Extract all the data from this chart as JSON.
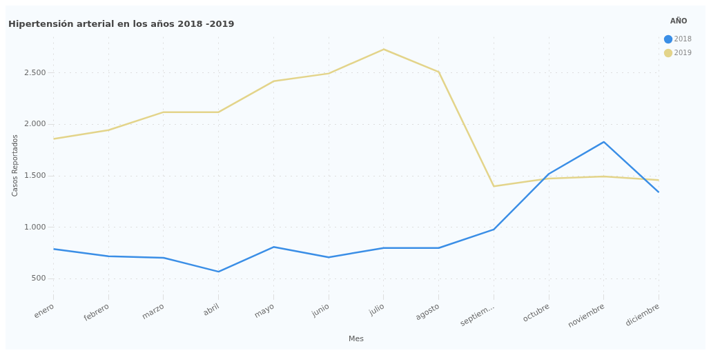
{
  "chart_data": {
    "type": "line",
    "title": "Hipertensión arterial en los años 2018 -2019",
    "xlabel": "Mes",
    "ylabel": "Casos Reportados",
    "legend_title": "AÑO",
    "categories": [
      "enero",
      "febrero",
      "marzo",
      "abril",
      "mayo",
      "junio",
      "julio",
      "agosto",
      "septiem...",
      "octubre",
      "noviembre",
      "diciembre"
    ],
    "series": [
      {
        "name": "2018",
        "color": "#3a8ee6",
        "values": [
          790,
          720,
          705,
          570,
          810,
          710,
          800,
          800,
          980,
          1520,
          1830,
          1340
        ]
      },
      {
        "name": "2019",
        "color": "#e3d48a",
        "values": [
          1860,
          1945,
          2120,
          2120,
          2420,
          2495,
          2730,
          2510,
          1400,
          1475,
          1495,
          1460
        ]
      }
    ],
    "ylim": [
      350,
      2850
    ],
    "yticks": [
      {
        "value": 500,
        "label": "500"
      },
      {
        "value": 1000,
        "label": "1.000"
      },
      {
        "value": 1500,
        "label": "1.500"
      },
      {
        "value": 2000,
        "label": "2.000"
      },
      {
        "value": 2500,
        "label": "2.500"
      }
    ],
    "grid": true,
    "legend": "top right",
    "marker": "none",
    "line_style": "solid"
  }
}
